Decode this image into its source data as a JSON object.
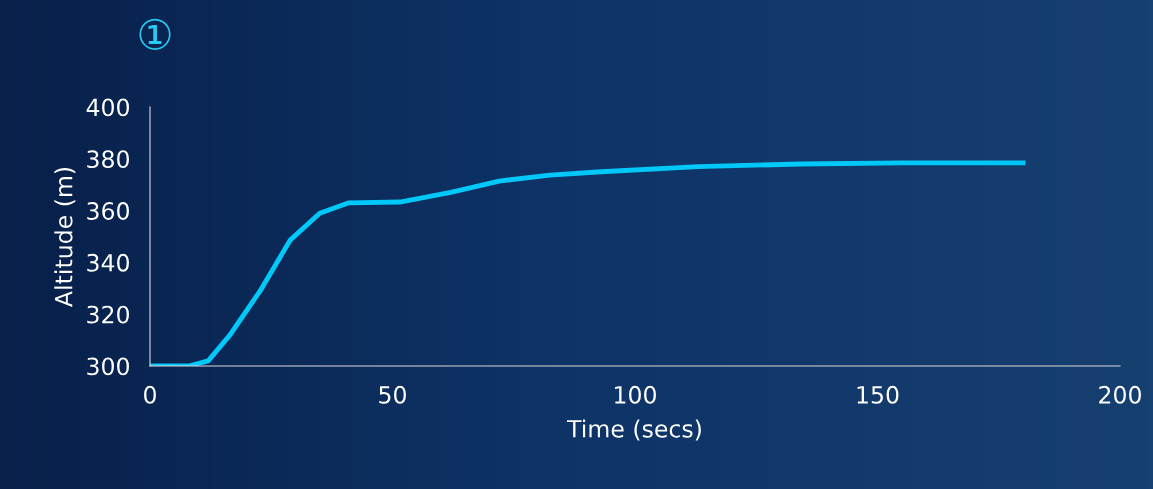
{
  "chart_data": {
    "type": "line",
    "xlabel": "Time (secs)",
    "ylabel": "Altitude (m)",
    "annotations": [
      "①"
    ],
    "x": [
      0,
      8,
      12,
      16.5,
      22.7,
      28.9,
      35,
      41,
      51.5,
      62,
      72,
      82.5,
      93,
      113,
      134,
      155,
      180
    ],
    "series": [
      {
        "color": "#00c8f8",
        "values": [
          300,
          300,
          302,
          312,
          329,
          348.6,
          359,
          363,
          363.3,
          367,
          371.4,
          373.7,
          375,
          377,
          378,
          378.4,
          378.4
        ]
      }
    ],
    "xlim": [
      0,
      200
    ],
    "xticks": [
      0,
      50,
      100,
      150,
      200
    ],
    "ylim": [
      300,
      400
    ],
    "yticks": [
      300,
      320,
      340,
      360,
      380,
      400
    ],
    "grid": false,
    "legend": false,
    "marker": "none",
    "line_style": "solid"
  }
}
